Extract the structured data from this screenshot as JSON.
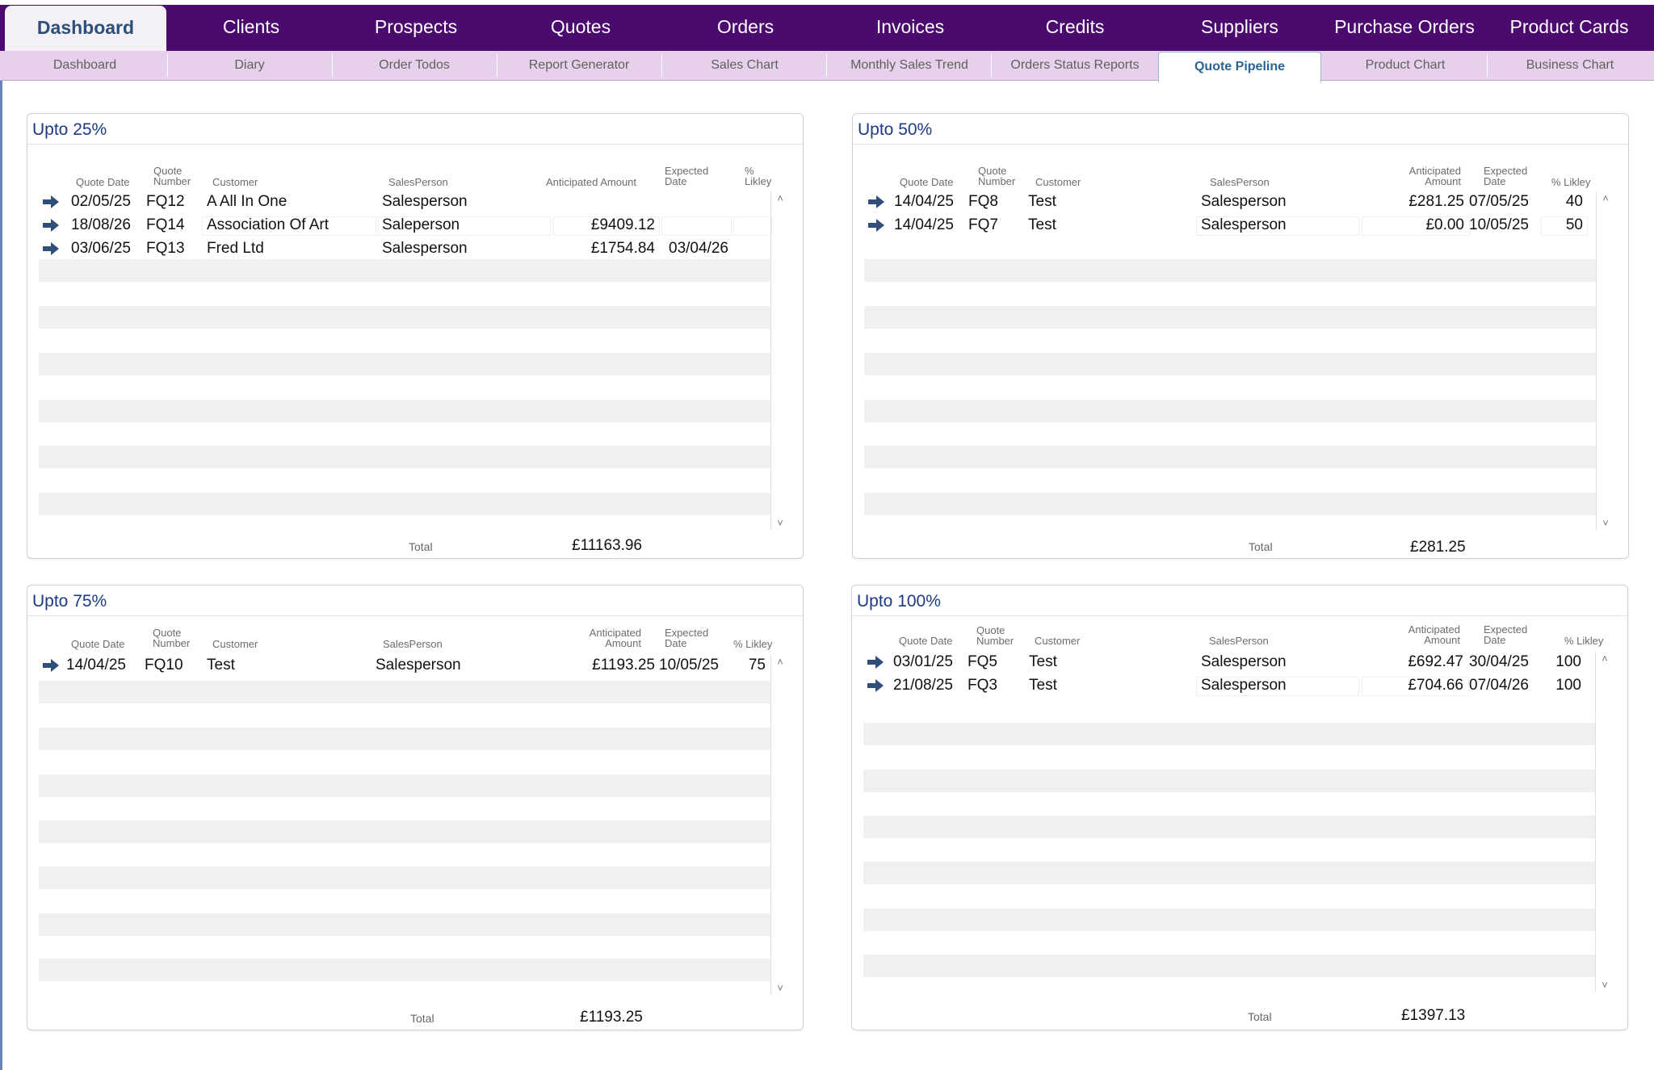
{
  "nav": {
    "tabs": [
      "Dashboard",
      "Clients",
      "Prospects",
      "Quotes",
      "Orders",
      "Invoices",
      "Credits",
      "Suppliers",
      "Purchase Orders",
      "Product Cards"
    ],
    "active_tab": "Dashboard"
  },
  "subnav": {
    "tabs": [
      "Dashboard",
      "Diary",
      "Order Todos",
      "Report Generator",
      "Sales Chart",
      "Monthly Sales Trend",
      "Orders Status Reports",
      "Quote Pipeline",
      "Product Chart",
      "Business Chart"
    ],
    "active_tab": "Quote Pipeline"
  },
  "columns": {
    "quote_date": "Quote Date",
    "quote_number_1": "Quote",
    "quote_number_2": "Number",
    "customer": "Customer",
    "salesperson": "SalesPerson",
    "anticipated_amount": "Anticipated Amount",
    "anticipated_1": "Anticipated",
    "anticipated_2": "Amount",
    "expected_1": "Expected",
    "expected_2": "Date",
    "pct_1": "%",
    "pct_2": "Likley",
    "pct_likley": "% Likley"
  },
  "panels": {
    "p25": {
      "title": "Upto 25%",
      "total_label": "Total",
      "total": "£11163.96",
      "rows": [
        {
          "date": "02/05/25",
          "number": "FQ12",
          "customer": "A All In One",
          "salesperson": "Salesperson",
          "amount": "",
          "expected": "",
          "likely": ""
        },
        {
          "date": "18/08/26",
          "number": "FQ14",
          "customer": "Association Of Art",
          "salesperson": "Saleperson",
          "amount": "£9409.12",
          "expected": "",
          "likely": ""
        },
        {
          "date": "03/06/25",
          "number": "FQ13",
          "customer": "Fred Ltd",
          "salesperson": "Salesperson",
          "amount": "£1754.84",
          "expected": "03/04/26",
          "likely": ""
        }
      ]
    },
    "p50": {
      "title": "Upto 50%",
      "total_label": "Total",
      "total": "£281.25",
      "rows": [
        {
          "date": "14/04/25",
          "number": "FQ8",
          "customer": "Test",
          "salesperson": "Salesperson",
          "amount": "£281.25",
          "expected": "07/05/25",
          "likely": "40"
        },
        {
          "date": "14/04/25",
          "number": "FQ7",
          "customer": "Test",
          "salesperson": "Salesperson",
          "amount": "£0.00",
          "expected": "10/05/25",
          "likely": "50"
        }
      ]
    },
    "p75": {
      "title": "Upto 75%",
      "total_label": "Total",
      "total": "£1193.25",
      "rows": [
        {
          "date": "14/04/25",
          "number": "FQ10",
          "customer": "Test",
          "salesperson": "Salesperson",
          "amount": "£1193.25",
          "expected": "10/05/25",
          "likely": "75"
        }
      ]
    },
    "p100": {
      "title": "Upto 100%",
      "total_label": "Total",
      "total": "£1397.13",
      "rows": [
        {
          "date": "03/01/25",
          "number": "FQ5",
          "customer": "Test",
          "salesperson": "Salesperson",
          "amount": "£692.47",
          "expected": "30/04/25",
          "likely": "100"
        },
        {
          "date": "21/08/25",
          "number": "FQ3",
          "customer": "Test",
          "salesperson": "Salesperson",
          "amount": "£704.66",
          "expected": "07/04/26",
          "likely": "100"
        }
      ]
    }
  },
  "scroll": {
    "up": "^",
    "down": "v"
  },
  "icons": {
    "row_action": "arrow-right-icon"
  },
  "colors": {
    "nav_bg": "#4b0a6e",
    "subnav_bg": "#e7d0eb",
    "title": "#1d3a86",
    "arrow": "#2f4f7a",
    "active_sub": "#2a6496"
  }
}
